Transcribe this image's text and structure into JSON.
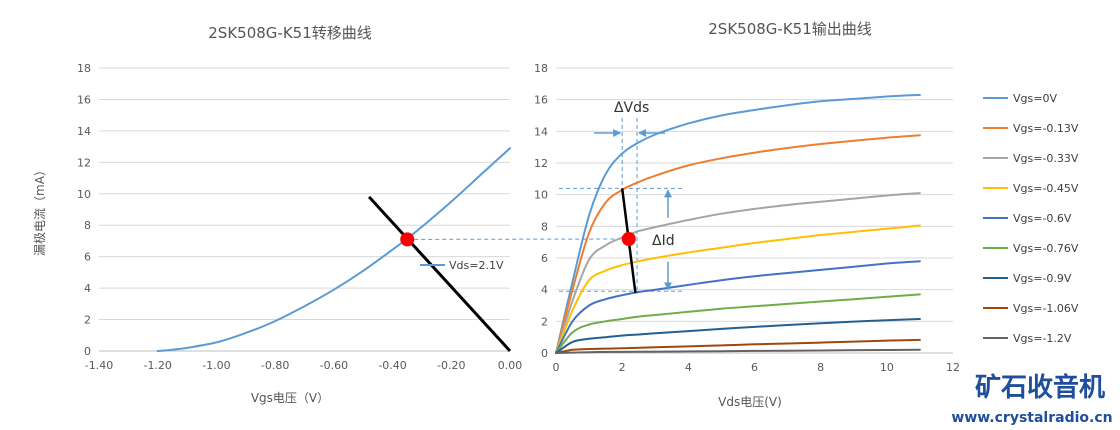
{
  "chart_data": [
    {
      "type": "line",
      "title": "2SK508G-K51转移曲线",
      "xlabel": "Vgs电压（V）",
      "ylabel": "漏极电流（mA）",
      "xlim": [
        -1.4,
        0.0
      ],
      "ylim": [
        0,
        18
      ],
      "x_ticks": [
        -1.4,
        -1.2,
        -1.0,
        -0.8,
        -0.6,
        -0.4,
        -0.2,
        0.0
      ],
      "x_tick_labels": [
        "-1.40",
        "-1.20",
        "-1.00",
        "-0.80",
        "-0.60",
        "-0.40",
        "-0.20",
        "0.00"
      ],
      "y_ticks": [
        0,
        2,
        4,
        6,
        8,
        10,
        12,
        14,
        16,
        18
      ],
      "y_tick_labels": [
        "0",
        "2",
        "4",
        "6",
        "8",
        "10",
        "12",
        "14",
        "16",
        "18"
      ],
      "grid": "horizontal",
      "legend_position": "center-right",
      "series": [
        {
          "name": "Vds=2.1V",
          "color": "#5b9bd5",
          "x": [
            -1.2,
            -1.15,
            -1.1,
            -1.0,
            -0.9,
            -0.8,
            -0.7,
            -0.6,
            -0.5,
            -0.4,
            -0.35,
            -0.3,
            -0.2,
            -0.1,
            0.0
          ],
          "y": [
            0,
            0.08,
            0.2,
            0.55,
            1.15,
            1.9,
            2.85,
            3.9,
            5.1,
            6.45,
            7.15,
            7.9,
            9.5,
            11.2,
            12.9
          ]
        }
      ],
      "annotations": {
        "load_line": {
          "color": "#000000",
          "points": [
            [
              -0.48,
              9.8
            ],
            [
              0.0,
              0.0
            ]
          ]
        },
        "operating_point": {
          "x": -0.35,
          "y": 7.1,
          "color": "#ff0000"
        }
      }
    },
    {
      "type": "line",
      "title": "2SK508G-K51输出曲线",
      "xlabel": "Vds电压(V)",
      "ylabel": "",
      "xlim": [
        0,
        12
      ],
      "ylim": [
        0,
        18
      ],
      "x_ticks": [
        0,
        2,
        4,
        6,
        8,
        10,
        12
      ],
      "x_tick_labels": [
        "0",
        "2",
        "4",
        "6",
        "8",
        "10",
        "12"
      ],
      "y_ticks": [
        0,
        2,
        4,
        6,
        8,
        10,
        12,
        14,
        16,
        18
      ],
      "y_tick_labels": [
        "0",
        "2",
        "4",
        "6",
        "8",
        "10",
        "12",
        "14",
        "16",
        "18"
      ],
      "grid": "horizontal",
      "legend_position": "right",
      "series": [
        {
          "name": "Vgs=0V",
          "color": "#5b9bd5",
          "x": [
            0,
            0.5,
            1,
            1.5,
            2,
            2.5,
            3,
            4,
            5,
            6,
            7,
            8,
            9,
            10,
            11
          ],
          "y": [
            0,
            4.5,
            8.7,
            11.3,
            12.6,
            13.3,
            13.8,
            14.5,
            15.0,
            15.35,
            15.65,
            15.9,
            16.05,
            16.2,
            16.3
          ]
        },
        {
          "name": "Vgs=-0.13V",
          "color": "#ed7d31",
          "x": [
            0,
            0.5,
            1,
            1.5,
            2,
            2.5,
            3,
            4,
            5,
            6,
            7,
            8,
            9,
            10,
            11
          ],
          "y": [
            0,
            4.0,
            7.6,
            9.5,
            10.3,
            10.8,
            11.2,
            11.85,
            12.3,
            12.65,
            12.95,
            13.2,
            13.4,
            13.6,
            13.75
          ]
        },
        {
          "name": "Vgs=-0.33V",
          "color": "#a5a5a5",
          "x": [
            0,
            0.5,
            1,
            1.5,
            2,
            2.5,
            3,
            4,
            5,
            6,
            7,
            8,
            9,
            10,
            11
          ],
          "y": [
            0,
            3.3,
            5.9,
            6.8,
            7.3,
            7.7,
            7.95,
            8.4,
            8.8,
            9.1,
            9.35,
            9.55,
            9.75,
            9.95,
            10.1
          ]
        },
        {
          "name": "Vgs=-0.45V",
          "color": "#ffc000",
          "x": [
            0,
            0.5,
            1,
            1.5,
            2,
            2.5,
            3,
            4,
            5,
            6,
            7,
            8,
            9,
            10,
            11
          ],
          "y": [
            0,
            2.7,
            4.6,
            5.2,
            5.55,
            5.8,
            6.0,
            6.35,
            6.65,
            6.95,
            7.2,
            7.45,
            7.65,
            7.85,
            8.05
          ]
        },
        {
          "name": "Vgs=-0.6V",
          "color": "#4472c4",
          "x": [
            0,
            0.5,
            1,
            1.5,
            2,
            2.5,
            3,
            4,
            5,
            6,
            7,
            8,
            9,
            10,
            11
          ],
          "y": [
            0,
            2.0,
            3.0,
            3.4,
            3.65,
            3.85,
            4.0,
            4.3,
            4.6,
            4.85,
            5.05,
            5.25,
            5.45,
            5.65,
            5.8
          ]
        },
        {
          "name": "Vgs=-0.76V",
          "color": "#70ad47",
          "x": [
            0,
            0.5,
            1,
            1.5,
            2,
            2.5,
            3,
            4,
            5,
            6,
            7,
            8,
            9,
            10,
            11
          ],
          "y": [
            0,
            1.3,
            1.8,
            2.0,
            2.15,
            2.3,
            2.4,
            2.6,
            2.8,
            2.95,
            3.1,
            3.25,
            3.4,
            3.55,
            3.7
          ]
        },
        {
          "name": "Vgs=-0.9V",
          "color": "#255e91",
          "x": [
            0,
            0.5,
            1,
            1.5,
            2,
            2.5,
            3,
            4,
            5,
            6,
            7,
            8,
            9,
            10,
            11
          ],
          "y": [
            0,
            0.7,
            0.9,
            1.0,
            1.1,
            1.17,
            1.25,
            1.38,
            1.52,
            1.65,
            1.77,
            1.88,
            1.98,
            2.07,
            2.15
          ]
        },
        {
          "name": "Vgs=-1.06V",
          "color": "#9e480e",
          "x": [
            0,
            0.5,
            1,
            1.5,
            2,
            3,
            4,
            5,
            6,
            7,
            8,
            9,
            10,
            11
          ],
          "y": [
            0,
            0.2,
            0.25,
            0.28,
            0.3,
            0.36,
            0.42,
            0.48,
            0.55,
            0.6,
            0.66,
            0.72,
            0.78,
            0.83
          ]
        },
        {
          "name": "Vgs=-1.2V",
          "color": "#636363",
          "x": [
            0,
            1,
            2,
            4,
            6,
            8,
            10,
            11
          ],
          "y": [
            0,
            0.05,
            0.07,
            0.1,
            0.13,
            0.16,
            0.19,
            0.2
          ]
        }
      ],
      "annotations": {
        "delta_vds_label": "ΔVds",
        "delta_id_label": "ΔId",
        "delta_vds_range": [
          2.0,
          2.45
        ],
        "delta_id_range": [
          3.9,
          10.4
        ],
        "operating_point": {
          "x": 2.2,
          "y": 7.2,
          "color": "#ff0000"
        },
        "load_line": {
          "color": "#000000",
          "points": [
            [
              2.0,
              10.4
            ],
            [
              2.4,
              3.8
            ]
          ]
        },
        "guide_color": "#5b9bd5"
      }
    }
  ],
  "watermark": {
    "brand": "矿石收音机",
    "url": "www.crystalradio.cn",
    "color": "#1f4e9c"
  }
}
